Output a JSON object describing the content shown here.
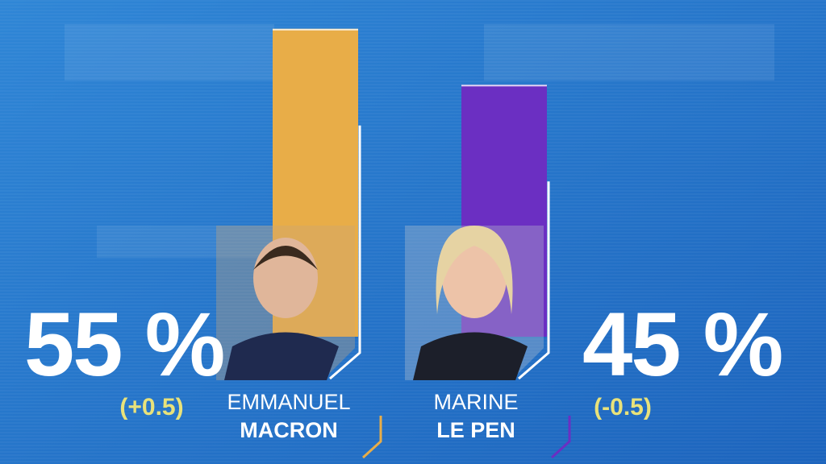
{
  "chart_data": {
    "type": "bar",
    "first_names": [
      "EMMANUEL",
      "MARINE"
    ],
    "categories": [
      "MACRON",
      "LE PEN"
    ],
    "values": [
      55,
      45
    ],
    "value_labels": [
      "55 %",
      "45 %"
    ],
    "change_labels": [
      "(+0.5)",
      "(-0.5)"
    ],
    "colors": [
      "#e8ad48",
      "#6b2fc2"
    ]
  }
}
